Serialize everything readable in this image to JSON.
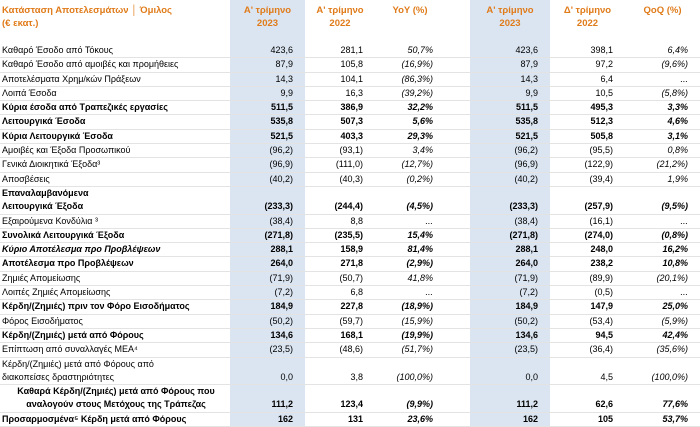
{
  "table": {
    "title": [
      "Κατάσταση Αποτελεσμάτων │ Όμιλος",
      "(€ εκατ.)"
    ],
    "columns": [
      [
        "Α' τρίμηνο",
        "2023"
      ],
      [
        "Α' τρίμηνο",
        "2022"
      ],
      [
        "YoY (%)"
      ],
      [
        "Α' τρίμηνο",
        "2023"
      ],
      [
        "Δ' τρίμηνο",
        "2022"
      ],
      [
        "QoQ (%)"
      ]
    ],
    "rows": [
      {
        "label": "Καθαρό Έσοδο από Τόκους",
        "cells": [
          "423,6",
          "281,1",
          "50,7%",
          "423,6",
          "398,1",
          "6,4%"
        ]
      },
      {
        "label": "Καθαρό Έσοδο από αμοιβές και προμήθειες",
        "cells": [
          "87,9",
          "105,8",
          "(16,9%)",
          "87,9",
          "97,2",
          "(9,6%)"
        ]
      },
      {
        "label": "Αποτελέσματα Χρημ/κών Πράξεων",
        "cells": [
          "14,3",
          "104,1",
          "(86,3%)",
          "14,3",
          "6,4",
          "..."
        ]
      },
      {
        "label": "Λοιπά Έσοδα",
        "cells": [
          "9,9",
          "16,3",
          "(39,2%)",
          "9,9",
          "10,5",
          "(5,8%)"
        ]
      },
      {
        "label": "Κύρια έσοδα από Τραπεζικές εργασίες",
        "cells": [
          "511,5",
          "386,9",
          "32,2%",
          "511,5",
          "495,3",
          "3,3%"
        ],
        "bold": true
      },
      {
        "label": "Λειτουργικά Έσοδα",
        "cells": [
          "535,8",
          "507,3",
          "5,6%",
          "535,8",
          "512,3",
          "4,6%"
        ],
        "bold": true
      },
      {
        "label": "Κύρια Λειτουργικά Έσοδα",
        "cells": [
          "521,5",
          "403,3",
          "29,3%",
          "521,5",
          "505,8",
          "3,1%"
        ],
        "bold": true
      },
      {
        "label": "Αμοιβές και Έξοδα Προσωπικού",
        "cells": [
          "(96,2)",
          "(93,1)",
          "3,4%",
          "(96,2)",
          "(95,5)",
          "0,8%"
        ]
      },
      {
        "label": "Γενικά Διοικητικά Έξοδα³",
        "cells": [
          "(96,9)",
          "(111,0)",
          "(12,7%)",
          "(96,9)",
          "(122,9)",
          "(21,2%)"
        ]
      },
      {
        "label": "Αποσβέσεις",
        "cells": [
          "(40,2)",
          "(40,3)",
          "(0,2%)",
          "(40,2)",
          "(39,4)",
          "1,9%"
        ]
      },
      {
        "label": [
          "Επαναλαμβανόμενα",
          "Λειτουργικά Έξοδα"
        ],
        "cells": [
          "(233,3)",
          "(244,4)",
          "(4,5%)",
          "(233,3)",
          "(257,9)",
          "(9,5%)"
        ],
        "bold": true
      },
      {
        "label": "Εξαιρούμενα Κονδύλια ³",
        "cells": [
          "(38,4)",
          "8,8",
          "...",
          "(38,4)",
          "(16,1)",
          "..."
        ]
      },
      {
        "label": "Συνολικά Λειτουργικά Έξοδα",
        "cells": [
          "(271,8)",
          "(235,5)",
          "15,4%",
          "(271,8)",
          "(274,0)",
          "(0,8%)"
        ],
        "bold": true
      },
      {
        "label": "Κύριο Αποτέλεσμα προ Προβλέψεων",
        "cells": [
          "288,1",
          "158,9",
          "81,4%",
          "288,1",
          "248,0",
          "16,2%"
        ],
        "bold": true,
        "italic": true
      },
      {
        "label": "Αποτέλεσμα προ Προβλέψεων",
        "cells": [
          "264,0",
          "271,8",
          "(2,9%)",
          "264,0",
          "238,2",
          "10,8%"
        ],
        "bold": true
      },
      {
        "label": "Ζημιές Απομείωσης",
        "cells": [
          "(71,9)",
          "(50,7)",
          "41,8%",
          "(71,9)",
          "(89,9)",
          "(20,1%)"
        ]
      },
      {
        "label": "Λοιπές Ζημιές Απομείωσης",
        "cells": [
          "(7,2)",
          "6,8",
          "...",
          "(7,2)",
          "(0,5)",
          "..."
        ]
      },
      {
        "label": "Κέρδη/(Ζημιές) πριν τον Φόρο Εισοδήματος",
        "cells": [
          "184,9",
          "227,8",
          "(18,9%)",
          "184,9",
          "147,9",
          "25,0%"
        ],
        "bold": true
      },
      {
        "label": "Φόρος Εισοδήματος",
        "cells": [
          "(50,2)",
          "(59,7)",
          "(15,9%)",
          "(50,2)",
          "(53,4)",
          "(5,9%)"
        ]
      },
      {
        "label": "Κέρδη/(Ζημιές) μετά από Φόρους",
        "cells": [
          "134,6",
          "168,1",
          "(19,9%)",
          "134,6",
          "94,5",
          "42,4%"
        ],
        "bold": true
      },
      {
        "label": "Επίπτωση από συναλλαγές ΜΕΑ⁴",
        "cells": [
          "(23,5)",
          "(48,6)",
          "(51,7%)",
          "(23,5)",
          "(36,4)",
          "(35,6%)"
        ]
      },
      {
        "label": [
          "Κέρδη/(Ζημιές) μετά από Φόρους από",
          "διακοπείσες δραστηριότητες"
        ],
        "cells": [
          "0,0",
          "3,8",
          "(100,0%)",
          "0,0",
          "4,5",
          "(100,0%)"
        ]
      },
      {
        "label": [
          "Καθαρά Κέρδη/(Ζημιές) μετά από Φόρους που",
          "αναλογούν στους Μετόχους της Τράπεζας"
        ],
        "cells": [
          "111,2",
          "123,4",
          "(9,9%)",
          "111,2",
          "62,6",
          "77,6%"
        ],
        "bold": true,
        "centered": true
      },
      {
        "label": "Προσαρμοσμένα⁵ Κέρδη μετά από Φόρους",
        "cells": [
          "162",
          "131",
          "23,6%",
          "162",
          "105",
          "53,7%"
        ],
        "bold": true
      }
    ]
  }
}
